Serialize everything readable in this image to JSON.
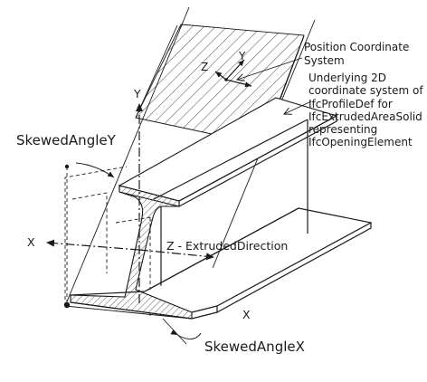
{
  "labels": {
    "position_coordinate_system": [
      "Position Coordinate",
      "System"
    ],
    "underlying_2d": [
      "Underlying 2D",
      "coordinate system of",
      "IfcProfileDef for",
      "IfcExtrudedAreaSolid",
      "representing",
      "IfcOpeningElement"
    ],
    "skewed_angle_y": "SkewedAngleY",
    "skewed_angle_x": "SkewedAngleX",
    "axis_y": "Y",
    "axis_x_left": "X",
    "axis_x_bottom": "X",
    "extruded_direction": "Z - ExtrudedDirection",
    "local_z": "Z",
    "local_y": "Y"
  },
  "colors": {
    "line": "#1a1a1a",
    "background": "#ffffff"
  }
}
